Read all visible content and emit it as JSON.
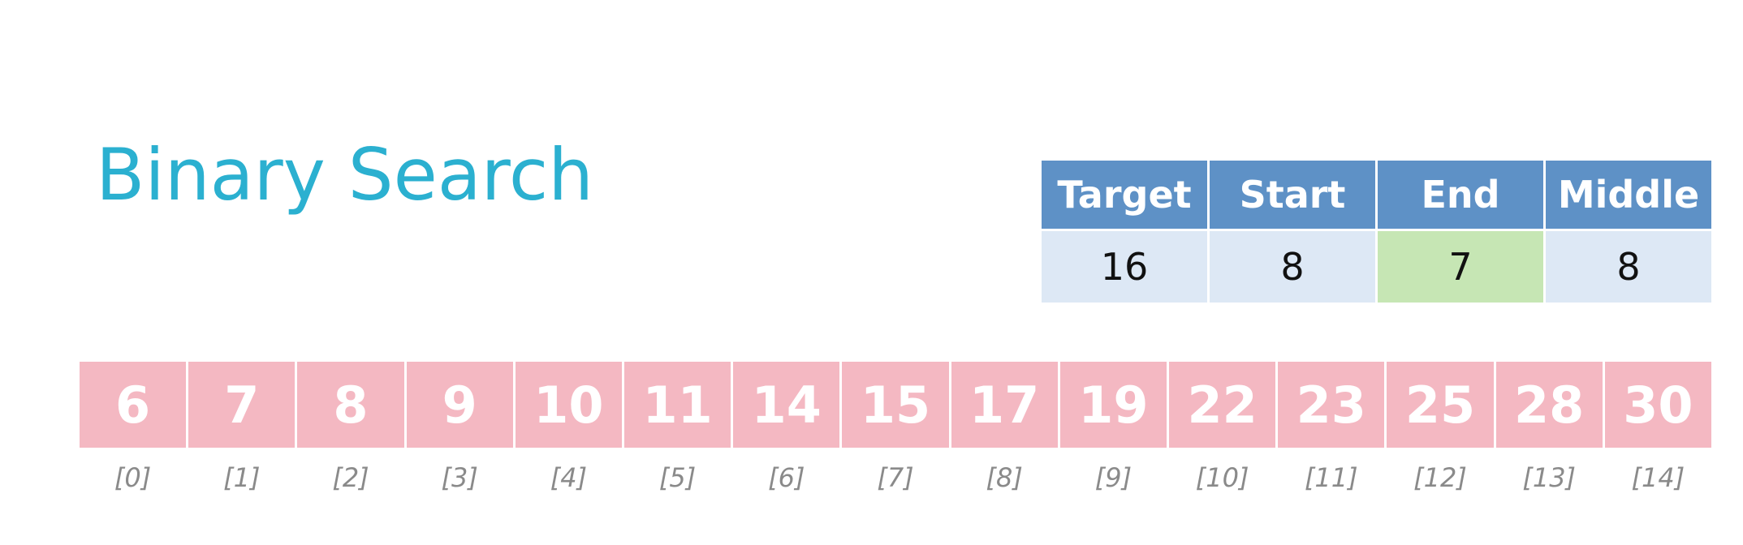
{
  "title": "Binary Search",
  "state": {
    "columns": [
      {
        "label": "Target",
        "value": "16",
        "highlight": false
      },
      {
        "label": "Start",
        "value": "8",
        "highlight": false
      },
      {
        "label": "End",
        "value": "7",
        "highlight": true
      },
      {
        "label": "Middle",
        "value": "8",
        "highlight": false
      }
    ]
  },
  "array": [
    {
      "value": "6",
      "index": "[0]"
    },
    {
      "value": "7",
      "index": "[1]"
    },
    {
      "value": "8",
      "index": "[2]"
    },
    {
      "value": "9",
      "index": "[3]"
    },
    {
      "value": "10",
      "index": "[4]"
    },
    {
      "value": "11",
      "index": "[5]"
    },
    {
      "value": "14",
      "index": "[6]"
    },
    {
      "value": "15",
      "index": "[7]"
    },
    {
      "value": "17",
      "index": "[8]"
    },
    {
      "value": "19",
      "index": "[9]"
    },
    {
      "value": "22",
      "index": "[10]"
    },
    {
      "value": "23",
      "index": "[11]"
    },
    {
      "value": "25",
      "index": "[12]"
    },
    {
      "value": "28",
      "index": "[13]"
    },
    {
      "value": "30",
      "index": "[14]"
    }
  ],
  "colors": {
    "title": "#2bb0d0",
    "header": "#5e91c6",
    "value_cell": "#dde8f5",
    "changed_cell": "#c6e6b4",
    "array_cell": "#f4b8c2"
  }
}
